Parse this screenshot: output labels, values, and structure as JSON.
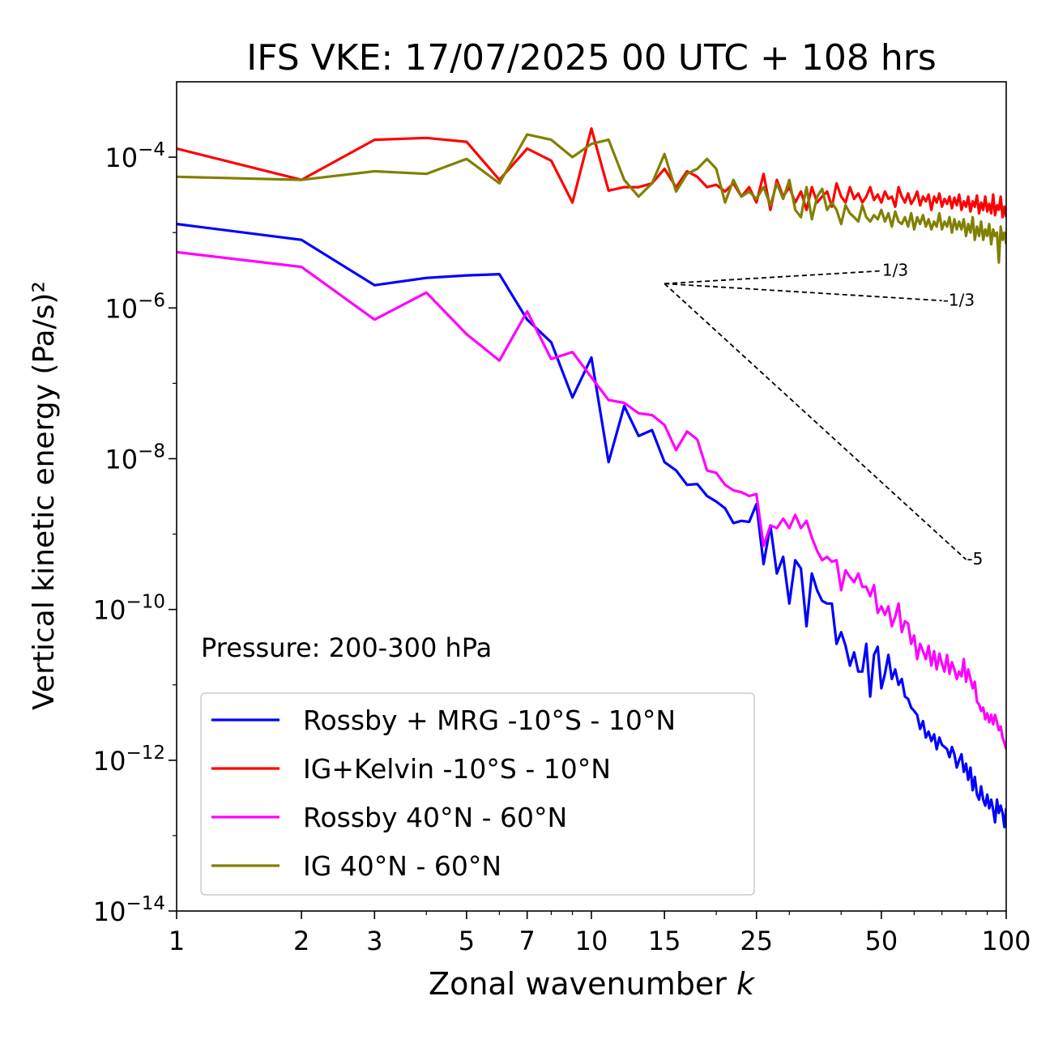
{
  "chart_data": {
    "type": "line",
    "title": "IFS VKE: 17/07/2025 00 UTC + 108 hrs",
    "xlabel": "Zonal wavenumber",
    "xlabel_italic": "k",
    "ylabel": "Vertical kinetic energy (Pa/s)²",
    "xscale": "log",
    "yscale": "log",
    "xlim": [
      1,
      100
    ],
    "ylim": [
      1e-14,
      0.001
    ],
    "xticks": [
      1,
      2,
      3,
      5,
      7,
      10,
      15,
      25,
      50,
      100
    ],
    "xtick_labels": [
      "1",
      "2",
      "3",
      "5",
      "7",
      "10",
      "15",
      "25",
      "50",
      "100"
    ],
    "yticks": [
      1e-14,
      1e-12,
      1e-10,
      1e-08,
      1e-06,
      0.0001
    ],
    "ytick_exponents": [
      "−14",
      "−12",
      "−10",
      "−8",
      "−6",
      "−4"
    ],
    "ytick_base": "10",
    "grid": false,
    "annotation": "Pressure: 200-300 hPa",
    "legend_position": "lower-left",
    "series": [
      {
        "name": "Rossby + MRG -10°S - 10°N",
        "color": "#0000ff",
        "x": [
          1,
          2,
          3,
          4,
          5,
          6,
          7,
          8,
          9,
          10,
          11,
          12,
          13,
          14,
          15,
          16,
          17,
          18,
          19,
          20,
          21,
          22,
          23,
          24,
          25,
          26,
          27,
          28,
          29,
          30,
          31,
          32,
          33,
          34,
          35,
          36,
          37,
          38,
          39,
          40,
          41,
          42,
          43,
          44,
          45,
          46,
          47,
          48,
          49,
          50,
          51,
          52,
          53,
          54,
          55,
          56,
          57,
          58,
          59,
          60,
          61,
          62,
          63,
          64,
          65,
          66,
          67,
          68,
          69,
          70,
          71,
          72,
          73,
          74,
          75,
          76,
          77,
          78,
          79,
          80,
          81,
          82,
          83,
          84,
          85,
          86,
          87,
          88,
          89,
          90,
          91,
          92,
          93,
          94,
          95,
          96,
          97,
          98,
          99,
          100
        ],
        "y": [
          1.3e-05,
          8e-06,
          2e-06,
          2.5e-06,
          2.7e-06,
          2.8e-06,
          7e-07,
          3.5e-07,
          6.5e-08,
          2.2e-07,
          9e-09,
          5e-08,
          2e-08,
          2.4e-08,
          9e-09,
          7e-09,
          4.5e-09,
          4.6e-09,
          3.2e-09,
          2.7e-09,
          2.2e-09,
          1.4e-09,
          1.5e-09,
          1.45e-09,
          2.5e-09,
          4e-10,
          1.3e-09,
          3e-10,
          5e-10,
          1.2e-10,
          4.5e-10,
          3.5e-10,
          6e-11,
          3e-10,
          1.8e-10,
          1.3e-10,
          1.2e-10,
          1.2e-10,
          3.5e-11,
          5e-11,
          3.3e-11,
          1.8e-11,
          2.7e-11,
          1.5e-11,
          1.5e-11,
          3.5e-11,
          7e-12,
          2.5e-11,
          3.2e-11,
          9e-12,
          1.4e-11,
          2.5e-11,
          1.2e-11,
          1.6e-11,
          1e-11,
          1.2e-11,
          7e-12,
          6.5e-12,
          5e-12,
          4.5e-12,
          4e-12,
          2.6e-12,
          3.3e-12,
          2e-12,
          2.4e-12,
          1.8e-12,
          2.2e-12,
          1.4e-12,
          2e-12,
          1.6e-12,
          1.5e-12,
          1.4e-12,
          1.1e-12,
          1.5e-12,
          1.2e-12,
          8e-13,
          1e-12,
          1.2e-12,
          7e-13,
          9e-13,
          5.5e-13,
          8e-13,
          4e-13,
          6e-13,
          3.5e-13,
          3e-13,
          4.5e-13,
          3e-13,
          2.5e-13,
          3.5e-13,
          2.3e-13,
          3e-13,
          2.2e-13,
          1.5e-13,
          3e-13,
          2e-13,
          2.5e-13,
          2e-13,
          1.3e-13,
          2.3e-13
        ]
      },
      {
        "name": "IG+Kelvin -10°S - 10°N",
        "color": "#ff0000",
        "x": [
          1,
          2,
          3,
          4,
          5,
          6,
          7,
          8,
          9,
          10,
          11,
          12,
          13,
          14,
          15,
          16,
          17,
          18,
          19,
          20,
          21,
          22,
          23,
          24,
          25,
          26,
          27,
          28,
          29,
          30,
          31,
          32,
          33,
          34,
          35,
          36,
          37,
          38,
          39,
          40,
          41,
          42,
          43,
          44,
          45,
          46,
          47,
          48,
          49,
          50,
          51,
          52,
          53,
          54,
          55,
          56,
          57,
          58,
          59,
          60,
          61,
          62,
          63,
          64,
          65,
          66,
          67,
          68,
          69,
          70,
          71,
          72,
          73,
          74,
          75,
          76,
          77,
          78,
          79,
          80,
          81,
          82,
          83,
          84,
          85,
          86,
          87,
          88,
          89,
          90,
          91,
          92,
          93,
          94,
          95,
          96,
          97,
          98,
          99,
          100
        ],
        "y": [
          0.00013,
          5e-05,
          0.00017,
          0.00018,
          0.00016,
          5e-05,
          0.00013,
          9e-05,
          2.5e-05,
          0.00024,
          3.6e-05,
          4e-05,
          4e-05,
          4.5e-05,
          7e-05,
          4e-05,
          6.5e-05,
          5.5e-05,
          4e-05,
          4.3e-05,
          3.5e-05,
          4.5e-05,
          3e-05,
          4e-05,
          2.5e-05,
          6e-05,
          2e-05,
          5e-05,
          3e-05,
          4e-05,
          2.5e-05,
          3.5e-05,
          2e-05,
          4e-05,
          2.5e-05,
          3e-05,
          3.5e-05,
          2.2e-05,
          4.5e-05,
          3e-05,
          2.5e-05,
          4e-05,
          2.8e-05,
          3.3e-05,
          2.5e-05,
          3e-05,
          4e-05,
          2.7e-05,
          3.2e-05,
          2.5e-05,
          3.5e-05,
          2.8e-05,
          3e-05,
          2.2e-05,
          4e-05,
          3e-05,
          2.5e-05,
          3.3e-05,
          2.4e-05,
          2.8e-05,
          3.5e-05,
          2.3e-05,
          3e-05,
          2.6e-05,
          3.2e-05,
          2e-05,
          3e-05,
          2.5e-05,
          3.3e-05,
          2.2e-05,
          2.8e-05,
          2.4e-05,
          3e-05,
          2.1e-05,
          2.9e-05,
          2.3e-05,
          3.2e-05,
          2e-05,
          2.6e-05,
          2.2e-05,
          3e-05,
          1.9e-05,
          2.6e-05,
          2.2e-05,
          3.1e-05,
          1.8e-05,
          2.5e-05,
          2e-05,
          3e-05,
          1.9e-05,
          2.4e-05,
          1.8e-05,
          3.2e-05,
          1.7e-05,
          2.3e-05,
          2e-05,
          3e-05,
          1.6e-05,
          2.2e-05,
          1.6e-05
        ]
      },
      {
        "name": "Rossby 40°N - 60°N",
        "color": "#ff00ff",
        "x": [
          1,
          2,
          3,
          4,
          5,
          6,
          7,
          8,
          9,
          10,
          11,
          12,
          13,
          14,
          15,
          16,
          17,
          18,
          19,
          20,
          21,
          22,
          23,
          24,
          25,
          26,
          27,
          28,
          29,
          30,
          31,
          32,
          33,
          34,
          35,
          36,
          37,
          38,
          39,
          40,
          41,
          42,
          43,
          44,
          45,
          46,
          47,
          48,
          49,
          50,
          51,
          52,
          53,
          54,
          55,
          56,
          57,
          58,
          59,
          60,
          61,
          62,
          63,
          64,
          65,
          66,
          67,
          68,
          69,
          70,
          71,
          72,
          73,
          74,
          75,
          76,
          77,
          78,
          79,
          80,
          81,
          82,
          83,
          84,
          85,
          86,
          87,
          88,
          89,
          90,
          91,
          92,
          93,
          94,
          95,
          96,
          97,
          98,
          99,
          100
        ],
        "y": [
          5.5e-06,
          3.5e-06,
          7e-07,
          1.6e-06,
          4.5e-07,
          2e-07,
          9e-07,
          2.1e-07,
          2.6e-07,
          1.2e-07,
          6e-08,
          5.5e-08,
          4e-08,
          3.8e-08,
          2.8e-08,
          1.3e-08,
          2.3e-08,
          1.8e-08,
          7e-09,
          6.5e-09,
          4.5e-09,
          3.8e-09,
          3.6e-09,
          3.2e-09,
          3.4e-09,
          7e-10,
          1.3e-09,
          1.2e-09,
          1.6e-09,
          1.2e-09,
          1.8e-09,
          1.2e-09,
          1.5e-09,
          9e-10,
          6e-10,
          4.5e-10,
          5e-10,
          4.3e-10,
          4.5e-10,
          1.8e-10,
          3.3e-10,
          2.7e-10,
          2.3e-10,
          3e-10,
          2e-10,
          2e-10,
          1.5e-10,
          2.1e-10,
          9e-11,
          1.1e-10,
          8.5e-11,
          1.1e-10,
          6e-11,
          8e-11,
          1.2e-10,
          5e-11,
          7e-11,
          6.5e-11,
          3.5e-11,
          4.5e-11,
          2.2e-11,
          3.5e-11,
          2.8e-11,
          2.2e-11,
          3.3e-11,
          1.8e-11,
          2.8e-11,
          1.6e-11,
          2.6e-11,
          1.9e-11,
          1.5e-11,
          2.5e-11,
          1.4e-11,
          2e-11,
          1.6e-11,
          1.2e-11,
          1.5e-11,
          1.3e-11,
          2.2e-11,
          1.1e-11,
          1.6e-11,
          1.2e-11,
          9e-12,
          1.1e-11,
          6e-12,
          5.5e-12,
          4.5e-12,
          5e-12,
          3.5e-12,
          4.2e-12,
          3.2e-12,
          4e-12,
          3e-12,
          4e-12,
          3.2e-12,
          2.5e-12,
          2.8e-12,
          2e-12,
          1.7e-12,
          1.4e-12
        ]
      },
      {
        "name": "IG 40°N - 60°N",
        "color": "#808000",
        "x": [
          1,
          2,
          3,
          4,
          5,
          6,
          7,
          8,
          9,
          10,
          11,
          12,
          13,
          14,
          15,
          16,
          17,
          18,
          19,
          20,
          21,
          22,
          23,
          24,
          25,
          26,
          27,
          28,
          29,
          30,
          31,
          32,
          33,
          34,
          35,
          36,
          37,
          38,
          39,
          40,
          41,
          42,
          43,
          44,
          45,
          46,
          47,
          48,
          49,
          50,
          51,
          52,
          53,
          54,
          55,
          56,
          57,
          58,
          59,
          60,
          61,
          62,
          63,
          64,
          65,
          66,
          67,
          68,
          69,
          70,
          71,
          72,
          73,
          74,
          75,
          76,
          77,
          78,
          79,
          80,
          81,
          82,
          83,
          84,
          85,
          86,
          87,
          88,
          89,
          90,
          91,
          92,
          93,
          94,
          95,
          96,
          97,
          98,
          99,
          100
        ],
        "y": [
          5.5e-05,
          5e-05,
          6.5e-05,
          6e-05,
          9.5e-05,
          4.5e-05,
          0.0002,
          0.00017,
          0.0001,
          0.00015,
          0.00017,
          5e-05,
          3e-05,
          4.5e-05,
          0.00011,
          3.5e-05,
          6e-05,
          7e-05,
          9.5e-05,
          7e-05,
          2.5e-05,
          5e-05,
          3e-05,
          3.5e-05,
          2.8e-05,
          4e-05,
          2.3e-05,
          4.5e-05,
          2.8e-05,
          5e-05,
          2e-05,
          1.6e-05,
          4e-05,
          1.5e-05,
          3e-05,
          3.8e-05,
          2e-05,
          2.5e-05,
          2e-05,
          1.3e-05,
          2.3e-05,
          1.8e-05,
          1.6e-05,
          1.4e-05,
          2.3e-05,
          1.6e-05,
          1.4e-05,
          1.7e-05,
          1.5e-05,
          2e-05,
          1.4e-05,
          1.8e-05,
          1.2e-05,
          1.9e-05,
          1.4e-05,
          1.3e-05,
          1.6e-05,
          1.2e-05,
          1.8e-05,
          1.1e-05,
          1.6e-05,
          1.3e-05,
          1.7e-05,
          1.2e-05,
          1.5e-05,
          1.1e-05,
          1.4e-05,
          1.2e-05,
          1.8e-05,
          1.1e-05,
          1.4e-05,
          1.2e-05,
          1.6e-05,
          1e-05,
          1.5e-05,
          1.1e-05,
          1.4e-05,
          1.1e-05,
          1.5e-05,
          9e-06,
          1.3e-05,
          1e-05,
          1.6e-05,
          8e-06,
          1.2e-05,
          9e-06,
          1.4e-05,
          8e-06,
          1.1e-05,
          9e-06,
          1.3e-05,
          7e-06,
          1.1e-05,
          9e-06,
          1e-05,
          4e-06,
          1.2e-05,
          8e-06,
          1e-05,
          7e-06
        ]
      }
    ],
    "reference_lines": [
      {
        "label": "1/3",
        "slope": 0.3333,
        "x": [
          15,
          50
        ],
        "y": [
          2.1e-06,
          3.1e-06
        ]
      },
      {
        "label": "-1/3",
        "slope": -0.3333,
        "x": [
          15,
          70
        ],
        "y": [
          2.1e-06,
          1.25e-06
        ]
      },
      {
        "label": "-5",
        "slope": -5,
        "x": [
          15,
          80
        ],
        "y": [
          2.1e-06,
          4.6e-10
        ]
      }
    ]
  }
}
